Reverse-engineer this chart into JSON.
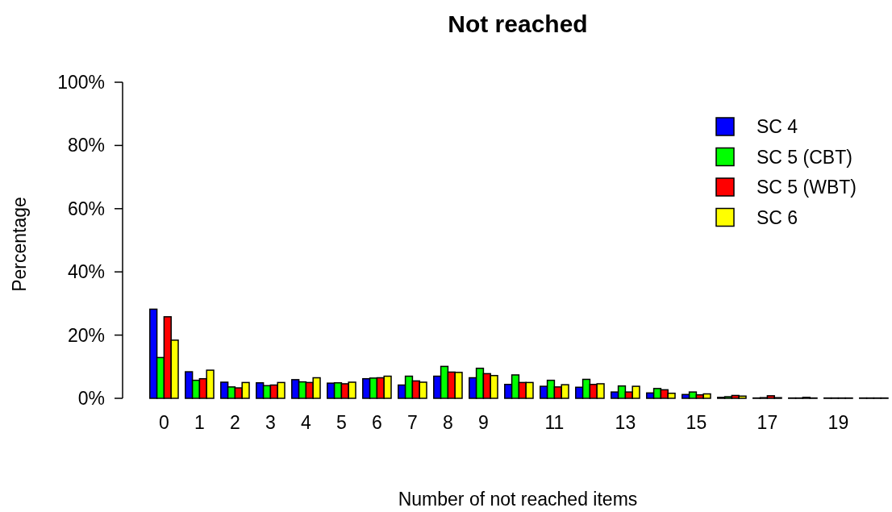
{
  "chart_data": {
    "type": "bar",
    "title": "Not reached",
    "xlabel": "Number of not reached items",
    "ylabel": "Percentage",
    "categories": [
      "0",
      "1",
      "2",
      "3",
      "4",
      "5",
      "6",
      "7",
      "8",
      "9",
      null,
      "11",
      null,
      "13",
      null,
      "15",
      null,
      "17",
      null,
      "19",
      null
    ],
    "series": [
      {
        "name": "SC 4",
        "color": "#0000ff",
        "values": [
          28.2,
          8.4,
          5.1,
          4.9,
          5.9,
          4.8,
          6.2,
          4.2,
          7.0,
          6.5,
          4.4,
          3.8,
          3.5,
          2.0,
          1.7,
          1.2,
          0.3,
          0.1,
          0.1,
          0.1,
          0.1
        ]
      },
      {
        "name": "SC 5 (CBT)",
        "color": "#00ff00",
        "values": [
          12.9,
          5.7,
          3.6,
          4.0,
          5.2,
          4.9,
          6.4,
          7.0,
          10.1,
          9.5,
          7.4,
          5.7,
          6.0,
          3.9,
          3.1,
          2.0,
          0.5,
          0.2,
          0.1,
          0.1,
          0.1
        ]
      },
      {
        "name": "SC 5 (WBT)",
        "color": "#ff0000",
        "values": [
          25.8,
          6.2,
          3.3,
          4.2,
          5.0,
          4.6,
          6.5,
          5.5,
          8.3,
          7.8,
          5.0,
          3.6,
          4.4,
          2.0,
          2.7,
          1.1,
          0.9,
          0.8,
          0.3,
          0.1,
          0.1
        ]
      },
      {
        "name": "SC 6",
        "color": "#ffff00",
        "values": [
          18.4,
          8.9,
          5.0,
          5.0,
          6.5,
          5.1,
          7.0,
          5.1,
          8.2,
          7.2,
          5.0,
          4.3,
          4.6,
          3.8,
          1.6,
          1.4,
          0.7,
          0.2,
          0.1,
          0.1,
          0.1
        ]
      }
    ],
    "ylim": [
      0,
      100
    ],
    "yticks": [
      {
        "value": 0,
        "label": "0%"
      },
      {
        "value": 20,
        "label": "20%"
      },
      {
        "value": 40,
        "label": "40%"
      },
      {
        "value": 60,
        "label": "60%"
      },
      {
        "value": 80,
        "label": "80%"
      },
      {
        "value": 100,
        "label": "100%"
      }
    ],
    "legend": "top right",
    "grid": false
  }
}
